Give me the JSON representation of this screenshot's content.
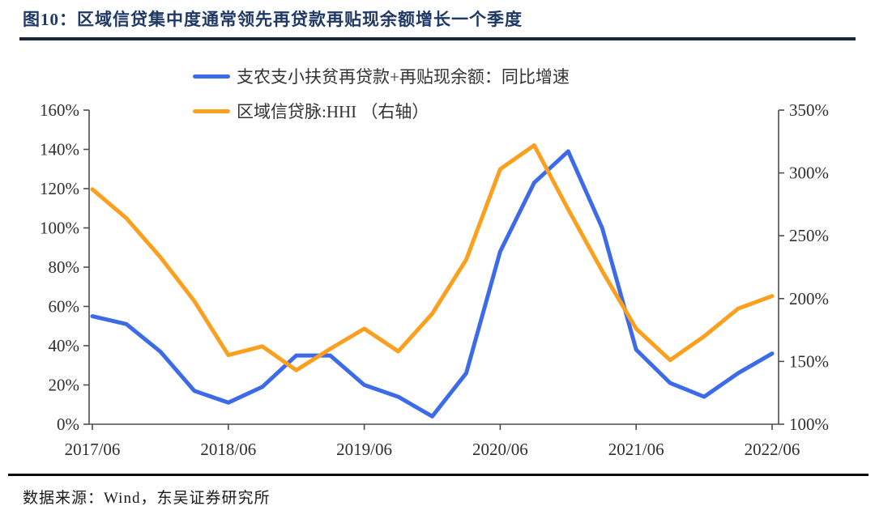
{
  "figure": {
    "title": "图10：区域信贷集中度通常领先再贷款再贴现余额增长一个季度",
    "source": "数据来源：Wind，东吴证券研究所"
  },
  "colors": {
    "title_navy": "#1F3864",
    "blue_series": "#3D6BE8",
    "orange_series": "#FBA01E",
    "axis_line": "#4d4d4d",
    "tick_text": "#2f2f2f"
  },
  "chart_data": {
    "type": "line",
    "categories": [
      "2017/06",
      "2017/09",
      "2017/12",
      "2018/03",
      "2018/06",
      "2018/09",
      "2018/12",
      "2019/03",
      "2019/06",
      "2019/09",
      "2019/12",
      "2020/03",
      "2020/06",
      "2020/09",
      "2020/12",
      "2021/03",
      "2021/06",
      "2021/09",
      "2021/12",
      "2022/03",
      "2022/06"
    ],
    "x_tick_labels": [
      "2017/06",
      "2018/06",
      "2019/06",
      "2020/06",
      "2021/06",
      "2022/06"
    ],
    "series": [
      {
        "name": "支农支小扶贫再贷款+再贴现余额：同比增速",
        "axis": "left",
        "color": "#3D6BE8",
        "values": [
          55,
          51,
          37,
          17,
          11,
          19,
          35,
          35,
          20,
          14,
          4,
          26,
          88,
          123,
          139,
          100,
          38,
          21,
          14,
          26,
          36
        ]
      },
      {
        "name": "区域信贷脉:HHI （右轴）",
        "axis": "right",
        "color": "#FBA01E",
        "values": [
          287,
          264,
          233,
          198,
          155,
          162,
          143,
          160,
          176,
          158,
          188,
          231,
          303,
          322,
          271,
          222,
          176,
          151,
          170,
          192,
          202
        ]
      }
    ],
    "left_axis": {
      "min": 0,
      "max": 160,
      "step": 20,
      "unit": "%"
    },
    "right_axis": {
      "min": 100,
      "max": 350,
      "step": 50,
      "unit": "%"
    },
    "legend_position": "top-center",
    "grid": false
  }
}
